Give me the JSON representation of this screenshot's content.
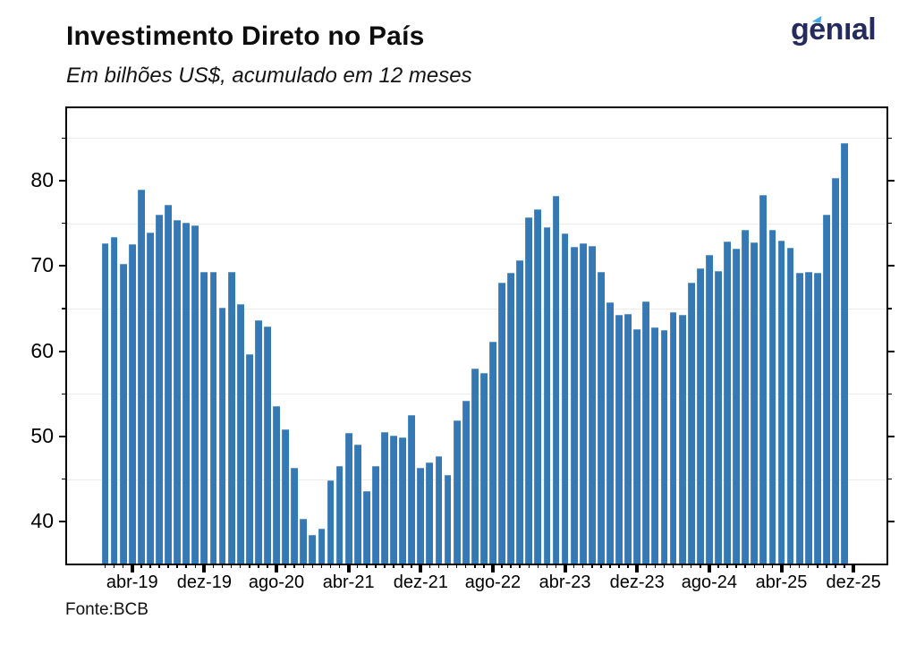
{
  "header": {
    "title": "Investimento Direto no País",
    "subtitle": "Em bilhões US$, acumulado em 12 meses",
    "logo_text": "genıal"
  },
  "footer": {
    "source": "Fonte:BCB"
  },
  "colors": {
    "bar": "#3478b6",
    "logo_navy": "#252b5c",
    "logo_accent": "#41abe6",
    "grid": "#ececec",
    "axis": "#000000"
  },
  "chart_data": {
    "type": "bar",
    "title": "Investimento Direto no País",
    "subtitle": "Em bilhões US$, acumulado em 12 meses",
    "source": "Fonte:BCB",
    "unit": "bilhões US$, acumulado em 12 meses",
    "x": [
      "jan-19",
      "fev-19",
      "mar-19",
      "abr-19",
      "mai-19",
      "jun-19",
      "jul-19",
      "ago-19",
      "set-19",
      "out-19",
      "nov-19",
      "dez-19",
      "jan-20",
      "fev-20",
      "mar-20",
      "abr-20",
      "mai-20",
      "jun-20",
      "jul-20",
      "ago-20",
      "set-20",
      "out-20",
      "nov-20",
      "dez-20",
      "jan-21",
      "fev-21",
      "mar-21",
      "abr-21",
      "mai-21",
      "jun-21",
      "jul-21",
      "ago-21",
      "set-21",
      "out-21",
      "nov-21",
      "dez-21",
      "jan-22",
      "fev-22",
      "mar-22",
      "abr-22",
      "mai-22",
      "jun-22",
      "jul-22",
      "ago-22",
      "set-22",
      "out-22",
      "nov-22",
      "dez-22",
      "jan-23",
      "fev-23",
      "mar-23",
      "abr-23",
      "mai-23",
      "jun-23",
      "jul-23",
      "ago-23",
      "set-23",
      "out-23",
      "nov-23",
      "dez-23",
      "jan-24",
      "fev-24",
      "mar-24",
      "abr-24",
      "mai-24",
      "jun-24",
      "jul-24",
      "ago-24",
      "set-24",
      "out-24",
      "nov-24",
      "dez-24",
      "jan-25",
      "fev-25",
      "mar-25",
      "abr-25",
      "mai-25",
      "jun-25",
      "jul-25",
      "ago-25",
      "set-25",
      "out-25",
      "nov-25"
    ],
    "values": [
      72.7,
      73.4,
      70.2,
      72.6,
      79.0,
      73.9,
      76.0,
      77.2,
      75.4,
      75.1,
      74.8,
      69.3,
      69.3,
      65.1,
      69.3,
      65.5,
      59.7,
      63.6,
      62.9,
      53.6,
      50.8,
      46.3,
      40.3,
      38.5,
      39.2,
      44.9,
      46.5,
      50.4,
      49.1,
      43.6,
      46.5,
      50.5,
      50.1,
      49.9,
      52.5,
      46.3,
      47.0,
      47.7,
      45.5,
      51.9,
      54.2,
      58.0,
      57.4,
      61.1,
      68.0,
      69.2,
      70.7,
      75.7,
      76.6,
      74.5,
      78.2,
      73.8,
      72.2,
      72.7,
      72.4,
      69.3,
      65.7,
      64.3,
      64.4,
      62.6,
      65.8,
      62.8,
      62.5,
      64.6,
      64.3,
      68.0,
      69.7,
      71.3,
      69.4,
      72.9,
      72.0,
      74.2,
      72.8,
      78.3,
      74.2,
      73.0,
      72.1,
      69.2,
      69.3,
      69.2,
      76.0,
      80.3,
      84.4
    ],
    "xticks": [
      {
        "label": "abr-19",
        "index": 3
      },
      {
        "label": "dez-19",
        "index": 11
      },
      {
        "label": "ago-20",
        "index": 19
      },
      {
        "label": "abr-21",
        "index": 27
      },
      {
        "label": "dez-21",
        "index": 35
      },
      {
        "label": "ago-22",
        "index": 43
      },
      {
        "label": "abr-23",
        "index": 51
      },
      {
        "label": "dez-23",
        "index": 59
      },
      {
        "label": "ago-24",
        "index": 67
      },
      {
        "label": "abr-25",
        "index": 75
      },
      {
        "label": "dez-25",
        "index": 83
      }
    ],
    "yticks": [
      40,
      50,
      60,
      70,
      80
    ],
    "yticks_minor": [
      45,
      55,
      65,
      75,
      85
    ],
    "ylim": [
      35.1,
      88.5
    ],
    "grid": "minor-horizontal-only",
    "legend": "none"
  }
}
